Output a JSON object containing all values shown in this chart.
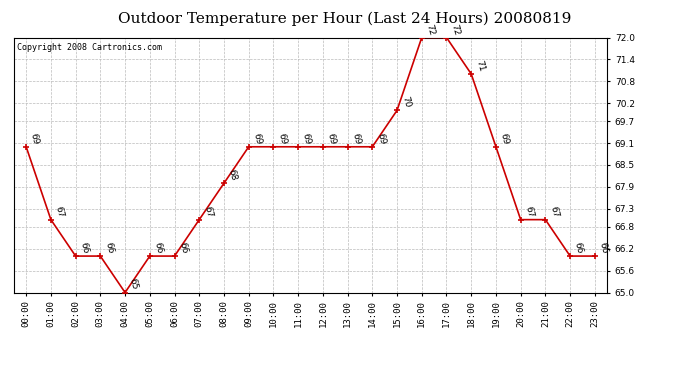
{
  "title": "Outdoor Temperature per Hour (Last 24 Hours) 20080819",
  "copyright": "Copyright 2008 Cartronics.com",
  "hours": [
    "00:00",
    "01:00",
    "02:00",
    "03:00",
    "04:00",
    "05:00",
    "06:00",
    "07:00",
    "08:00",
    "09:00",
    "10:00",
    "11:00",
    "12:00",
    "13:00",
    "14:00",
    "15:00",
    "16:00",
    "17:00",
    "18:00",
    "19:00",
    "20:00",
    "21:00",
    "22:00",
    "23:00"
  ],
  "temps": [
    69,
    67,
    66,
    66,
    65,
    66,
    66,
    67,
    68,
    69,
    69,
    69,
    69,
    69,
    69,
    70,
    72,
    72,
    71,
    69,
    67,
    67,
    66,
    66
  ],
  "ylim_min": 65.0,
  "ylim_max": 72.0,
  "yticks": [
    65.0,
    65.6,
    66.2,
    66.8,
    67.3,
    67.9,
    68.5,
    69.1,
    69.7,
    70.2,
    70.8,
    71.4,
    72.0
  ],
  "line_color": "#cc0000",
  "marker_color": "#cc0000",
  "bg_color": "#ffffff",
  "grid_color": "#bbbbbb",
  "title_fontsize": 11,
  "label_fontsize": 6.5,
  "copyright_fontsize": 6,
  "tick_fontsize": 6.5
}
